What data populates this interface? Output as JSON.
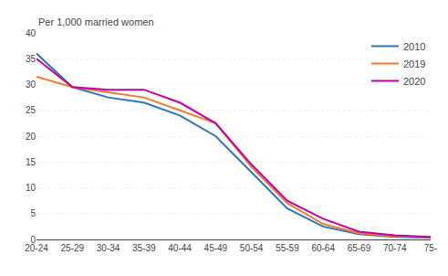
{
  "chart_data": {
    "type": "line",
    "ylabel": "Per 1,000 married women",
    "categories": [
      "20-24",
      "25-29",
      "30-34",
      "35-39",
      "40-44",
      "45-49",
      "50-54",
      "55-59",
      "60-64",
      "65-69",
      "70-74",
      "75-"
    ],
    "series": [
      {
        "name": "2010",
        "color": "#2E75B6",
        "values": [
          36.0,
          29.5,
          27.5,
          26.5,
          24.0,
          20.0,
          13.0,
          6.0,
          2.5,
          1.0,
          0.5,
          0.3
        ]
      },
      {
        "name": "2019",
        "color": "#ED7D31",
        "values": [
          31.5,
          29.5,
          28.5,
          27.5,
          25.0,
          22.5,
          14.0,
          7.0,
          3.0,
          1.2,
          0.6,
          0.4
        ]
      },
      {
        "name": "2020",
        "color": "#C000A0",
        "values": [
          35.0,
          29.5,
          29.0,
          29.0,
          26.5,
          22.5,
          14.5,
          7.5,
          4.0,
          1.5,
          0.8,
          0.5
        ]
      }
    ],
    "ylim": [
      0,
      40
    ],
    "yticks": [
      0,
      5,
      10,
      15,
      20,
      25,
      30,
      35,
      40
    ],
    "grid": true,
    "legend": "upper right"
  }
}
